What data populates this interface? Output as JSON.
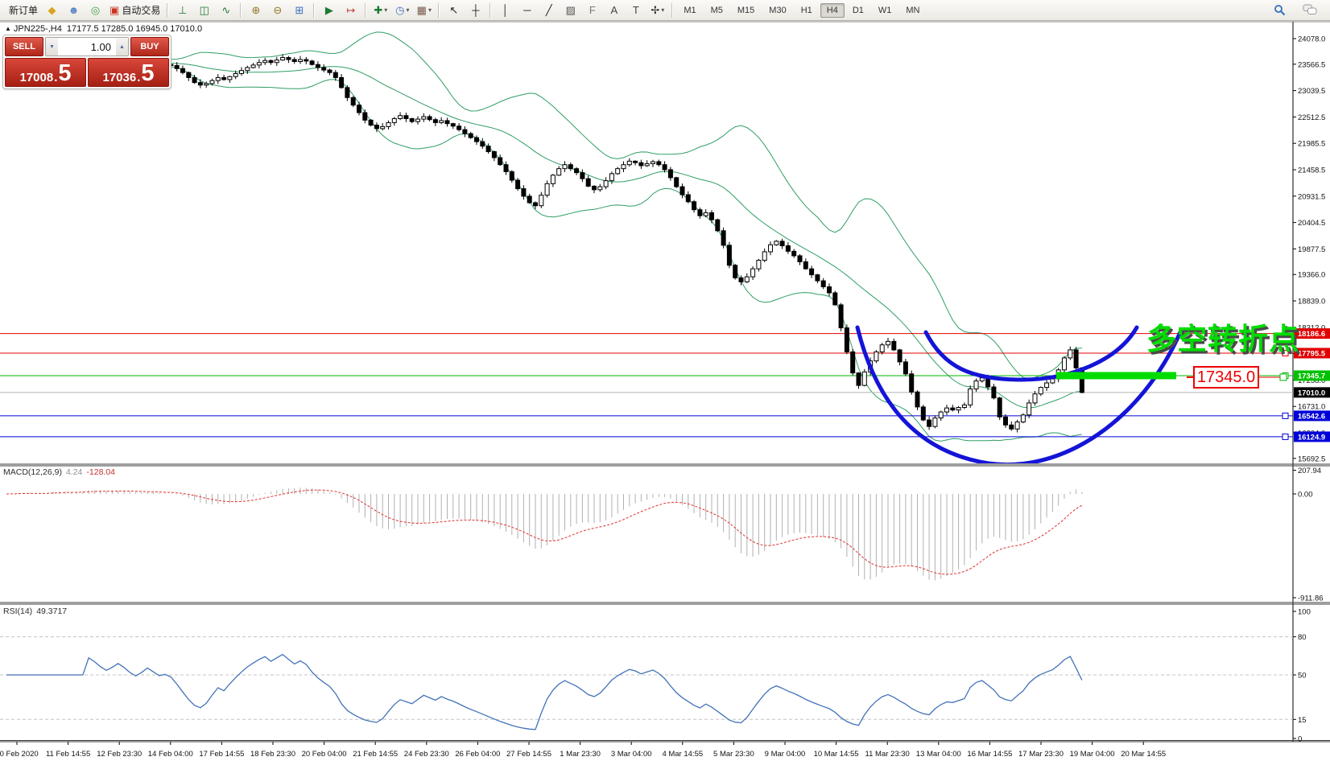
{
  "toolbar": {
    "caret_glyph": "▾",
    "items": [
      {
        "name": "new-order-button",
        "label": "新订单"
      },
      {
        "name": "funnel-icon",
        "glyph": "◆",
        "color": "#d9a520"
      },
      {
        "name": "profile-icon",
        "glyph": "☻",
        "color": "#5b87c5"
      },
      {
        "name": "signal-icon",
        "glyph": "◎",
        "color": "#43a047"
      },
      {
        "name": "autotrade-button",
        "glyph": "▣",
        "color": "#cc3322",
        "label": "自动交易"
      },
      {
        "sep": true
      },
      {
        "name": "bar-chart-icon",
        "glyph": "⊥",
        "color": "#1e7a34"
      },
      {
        "name": "candlestick-chart-icon",
        "glyph": "◫",
        "color": "#1e7a34"
      },
      {
        "name": "line-chart-icon",
        "glyph": "∿",
        "color": "#1e7a34"
      },
      {
        "sep": true
      },
      {
        "name": "zoom-in-icon",
        "glyph": "⊕",
        "color": "#93752a"
      },
      {
        "name": "zoom-out-icon",
        "glyph": "⊖",
        "color": "#93752a"
      },
      {
        "name": "tile-windows-icon",
        "glyph": "⊞",
        "color": "#3f6fbf"
      },
      {
        "sep": true
      },
      {
        "name": "auto-scroll-icon",
        "glyph": "▶",
        "color": "#1e7a34"
      },
      {
        "name": "chart-shift-icon",
        "glyph": "↦",
        "color": "#c0392b"
      },
      {
        "sep": true
      },
      {
        "name": "indicators-icon",
        "glyph": "✚",
        "color": "#1e7a34",
        "caret": true
      },
      {
        "name": "periods-icon",
        "glyph": "◷",
        "color": "#3f6fbf",
        "caret": true
      },
      {
        "name": "templates-icon",
        "glyph": "▦",
        "color": "#74584a",
        "caret": true
      },
      {
        "sep": true
      },
      {
        "name": "cursor-icon",
        "glyph": "↖",
        "color": "#222222"
      },
      {
        "name": "crosshair-icon",
        "glyph": "┼",
        "color": "#222222"
      },
      {
        "sep": true
      },
      {
        "name": "vertical-line-icon",
        "glyph": "│",
        "color": "#222222"
      },
      {
        "name": "horizontal-line-icon",
        "glyph": "─",
        "color": "#222222"
      },
      {
        "name": "trendline-icon",
        "glyph": "╱",
        "color": "#222222"
      },
      {
        "name": "channel-icon",
        "glyph": "▨",
        "color": "#555555"
      },
      {
        "name": "fibonacci-icon",
        "glyph": "F",
        "color": "#777777"
      },
      {
        "name": "text-icon",
        "glyph": "A",
        "color": "#444444"
      },
      {
        "name": "text-label-icon",
        "glyph": "T",
        "color": "#444444"
      },
      {
        "name": "arrows-icon",
        "glyph": "✢",
        "color": "#222222",
        "caret": true
      },
      {
        "sep": true
      }
    ],
    "timeframes": [
      "M1",
      "M5",
      "M15",
      "M30",
      "H1",
      "H4",
      "D1",
      "W1",
      "MN"
    ],
    "active_timeframe": "H4"
  },
  "symbol_line": {
    "arrow_glyph": "▲",
    "symbol": "JPN225-,H4",
    "ohlc": "17177.5 17285.0 16945.0 17010.0"
  },
  "trade_panel": {
    "sell_label": "SELL",
    "buy_label": "BUY",
    "volume": "1.00",
    "vol_down_glyph": "▼",
    "vol_up_glyph": "▲",
    "sell_price_int": "17008",
    "buy_price_int": "17036",
    "price_sep": ".",
    "sell_price_frac": "5",
    "buy_price_frac": "5"
  },
  "chart_data": {
    "type": "candlestick",
    "symbol": "JPN225-,H4",
    "ohlc_display": {
      "open": 17177.5,
      "high": 17285.0,
      "low": 16945.0,
      "close": 17010.0
    },
    "y_ticks": [
      24078.0,
      23566.5,
      23039.5,
      22512.5,
      21985.5,
      21458.5,
      20931.5,
      20404.5,
      19877.5,
      19366.0,
      18839.0,
      18312.0,
      17785.0,
      17258.0,
      16731.0,
      16204.0,
      15692.5
    ],
    "x_labels": [
      "10 Feb 2020",
      "11 Feb 14:55",
      "12 Feb 23:30",
      "14 Feb 04:00",
      "17 Feb 14:55",
      "18 Feb 23:30",
      "20 Feb 04:00",
      "21 Feb 14:55",
      "24 Feb 23:30",
      "26 Feb 04:00",
      "27 Feb 14:55",
      "1 Mar 23:30",
      "3 Mar 04:00",
      "4 Mar 14:55",
      "5 Mar 23:30",
      "9 Mar 04:00",
      "10 Mar 14:55",
      "11 Mar 23:30",
      "13 Mar 04:00",
      "16 Mar 14:55",
      "17 Mar 23:30",
      "19 Mar 04:00",
      "20 Mar 14:55"
    ],
    "closes": [
      23500,
      23540,
      23580,
      23550,
      23500,
      23460,
      23520,
      23580,
      23640,
      23600,
      23560,
      23530,
      23580,
      23630,
      23670,
      23640,
      23600,
      23570,
      23600,
      23640,
      23610,
      23570,
      23540,
      23570,
      23610,
      23580,
      23550,
      23560,
      23540,
      23480,
      23400,
      23300,
      23200,
      23150,
      23180,
      23240,
      23300,
      23260,
      23320,
      23380,
      23440,
      23500,
      23550,
      23600,
      23640,
      23600,
      23650,
      23700,
      23660,
      23620,
      23660,
      23630,
      23560,
      23500,
      23450,
      23400,
      23300,
      23100,
      22900,
      22750,
      22600,
      22450,
      22350,
      22280,
      22320,
      22400,
      22480,
      22540,
      22480,
      22420,
      22470,
      22520,
      22460,
      22400,
      22440,
      22380,
      22330,
      22260,
      22180,
      22100,
      22020,
      21930,
      21820,
      21700,
      21560,
      21420,
      21250,
      21080,
      20930,
      20800,
      20740,
      20950,
      21180,
      21350,
      21480,
      21560,
      21480,
      21400,
      21280,
      21130,
      21060,
      21120,
      21240,
      21380,
      21480,
      21560,
      21630,
      21600,
      21540,
      21580,
      21620,
      21560,
      21460,
      21300,
      21120,
      20960,
      20820,
      20660,
      20540,
      20600,
      20460,
      20240,
      19950,
      19550,
      19300,
      19220,
      19320,
      19480,
      19650,
      19820,
      19960,
      20030,
      19940,
      19830,
      19740,
      19620,
      19480,
      19360,
      19240,
      19120,
      19000,
      18760,
      18300,
      17820,
      17400,
      17150,
      17420,
      17640,
      17820,
      17960,
      18030,
      17860,
      17620,
      17380,
      17020,
      16720,
      16460,
      16330,
      16500,
      16620,
      16700,
      16660,
      16710,
      16760,
      17080,
      17240,
      17300,
      17120,
      16900,
      16520,
      16360,
      16280,
      16420,
      16560,
      16800,
      16980,
      17110,
      17200,
      17280,
      17460,
      17700,
      17860,
      17500,
      17010
    ],
    "hlines": [
      {
        "value": 18186.6,
        "color": "#e00000",
        "label": "18186.6",
        "label_bg": "#e00000"
      },
      {
        "value": 17795.5,
        "color": "#e00000",
        "label": "17795.5",
        "label_bg": "#e00000"
      },
      {
        "value": 17345.7,
        "color": "#00b400",
        "label": "17345.7",
        "label_bg": "#00c000"
      },
      {
        "value": 17010.0,
        "color": "#b4b4b4",
        "label": "17010.0",
        "label_bg": "#000000",
        "is_price": true
      },
      {
        "value": 16542.6,
        "color": "#0000d8",
        "label": "16542.6",
        "label_bg": "#0000d8"
      },
      {
        "value": 16124.9,
        "color": "#0000d8",
        "label": "16124.9",
        "label_bg": "#0000d8"
      }
    ],
    "bollinger": {
      "period": 20,
      "deviation": 2,
      "color": "#2f9e64"
    },
    "macd": {
      "label": "MACD(12,26,9)",
      "value": "4.24",
      "signal_value": "-128.04",
      "fast": 12,
      "slow": 26,
      "signal": 9,
      "ticks": [
        "207.94",
        "0.00",
        "-911.86"
      ],
      "tick_values": [
        207.94,
        0.0,
        -911.86
      ],
      "hist_color": "#b0b0b0",
      "signal_color": "#e03030"
    },
    "rsi": {
      "label": "RSI(14)",
      "value": "49.3717",
      "period": 14,
      "ticks": [
        "100",
        "80",
        "50",
        "15",
        "0"
      ],
      "tick_values": [
        100,
        80,
        50,
        15,
        0
      ],
      "dashed_levels": [
        80,
        50,
        15
      ],
      "line_color": "#4272b8"
    },
    "annotations": {
      "turning_point_text": "多空转折点",
      "text_color": "#00dc00",
      "callout_text": "17345.0",
      "callout_color": "#ee0000",
      "highlight_level": 17345.7,
      "highlight_color": "#00dc00",
      "arc_color": "#1414d8"
    }
  }
}
